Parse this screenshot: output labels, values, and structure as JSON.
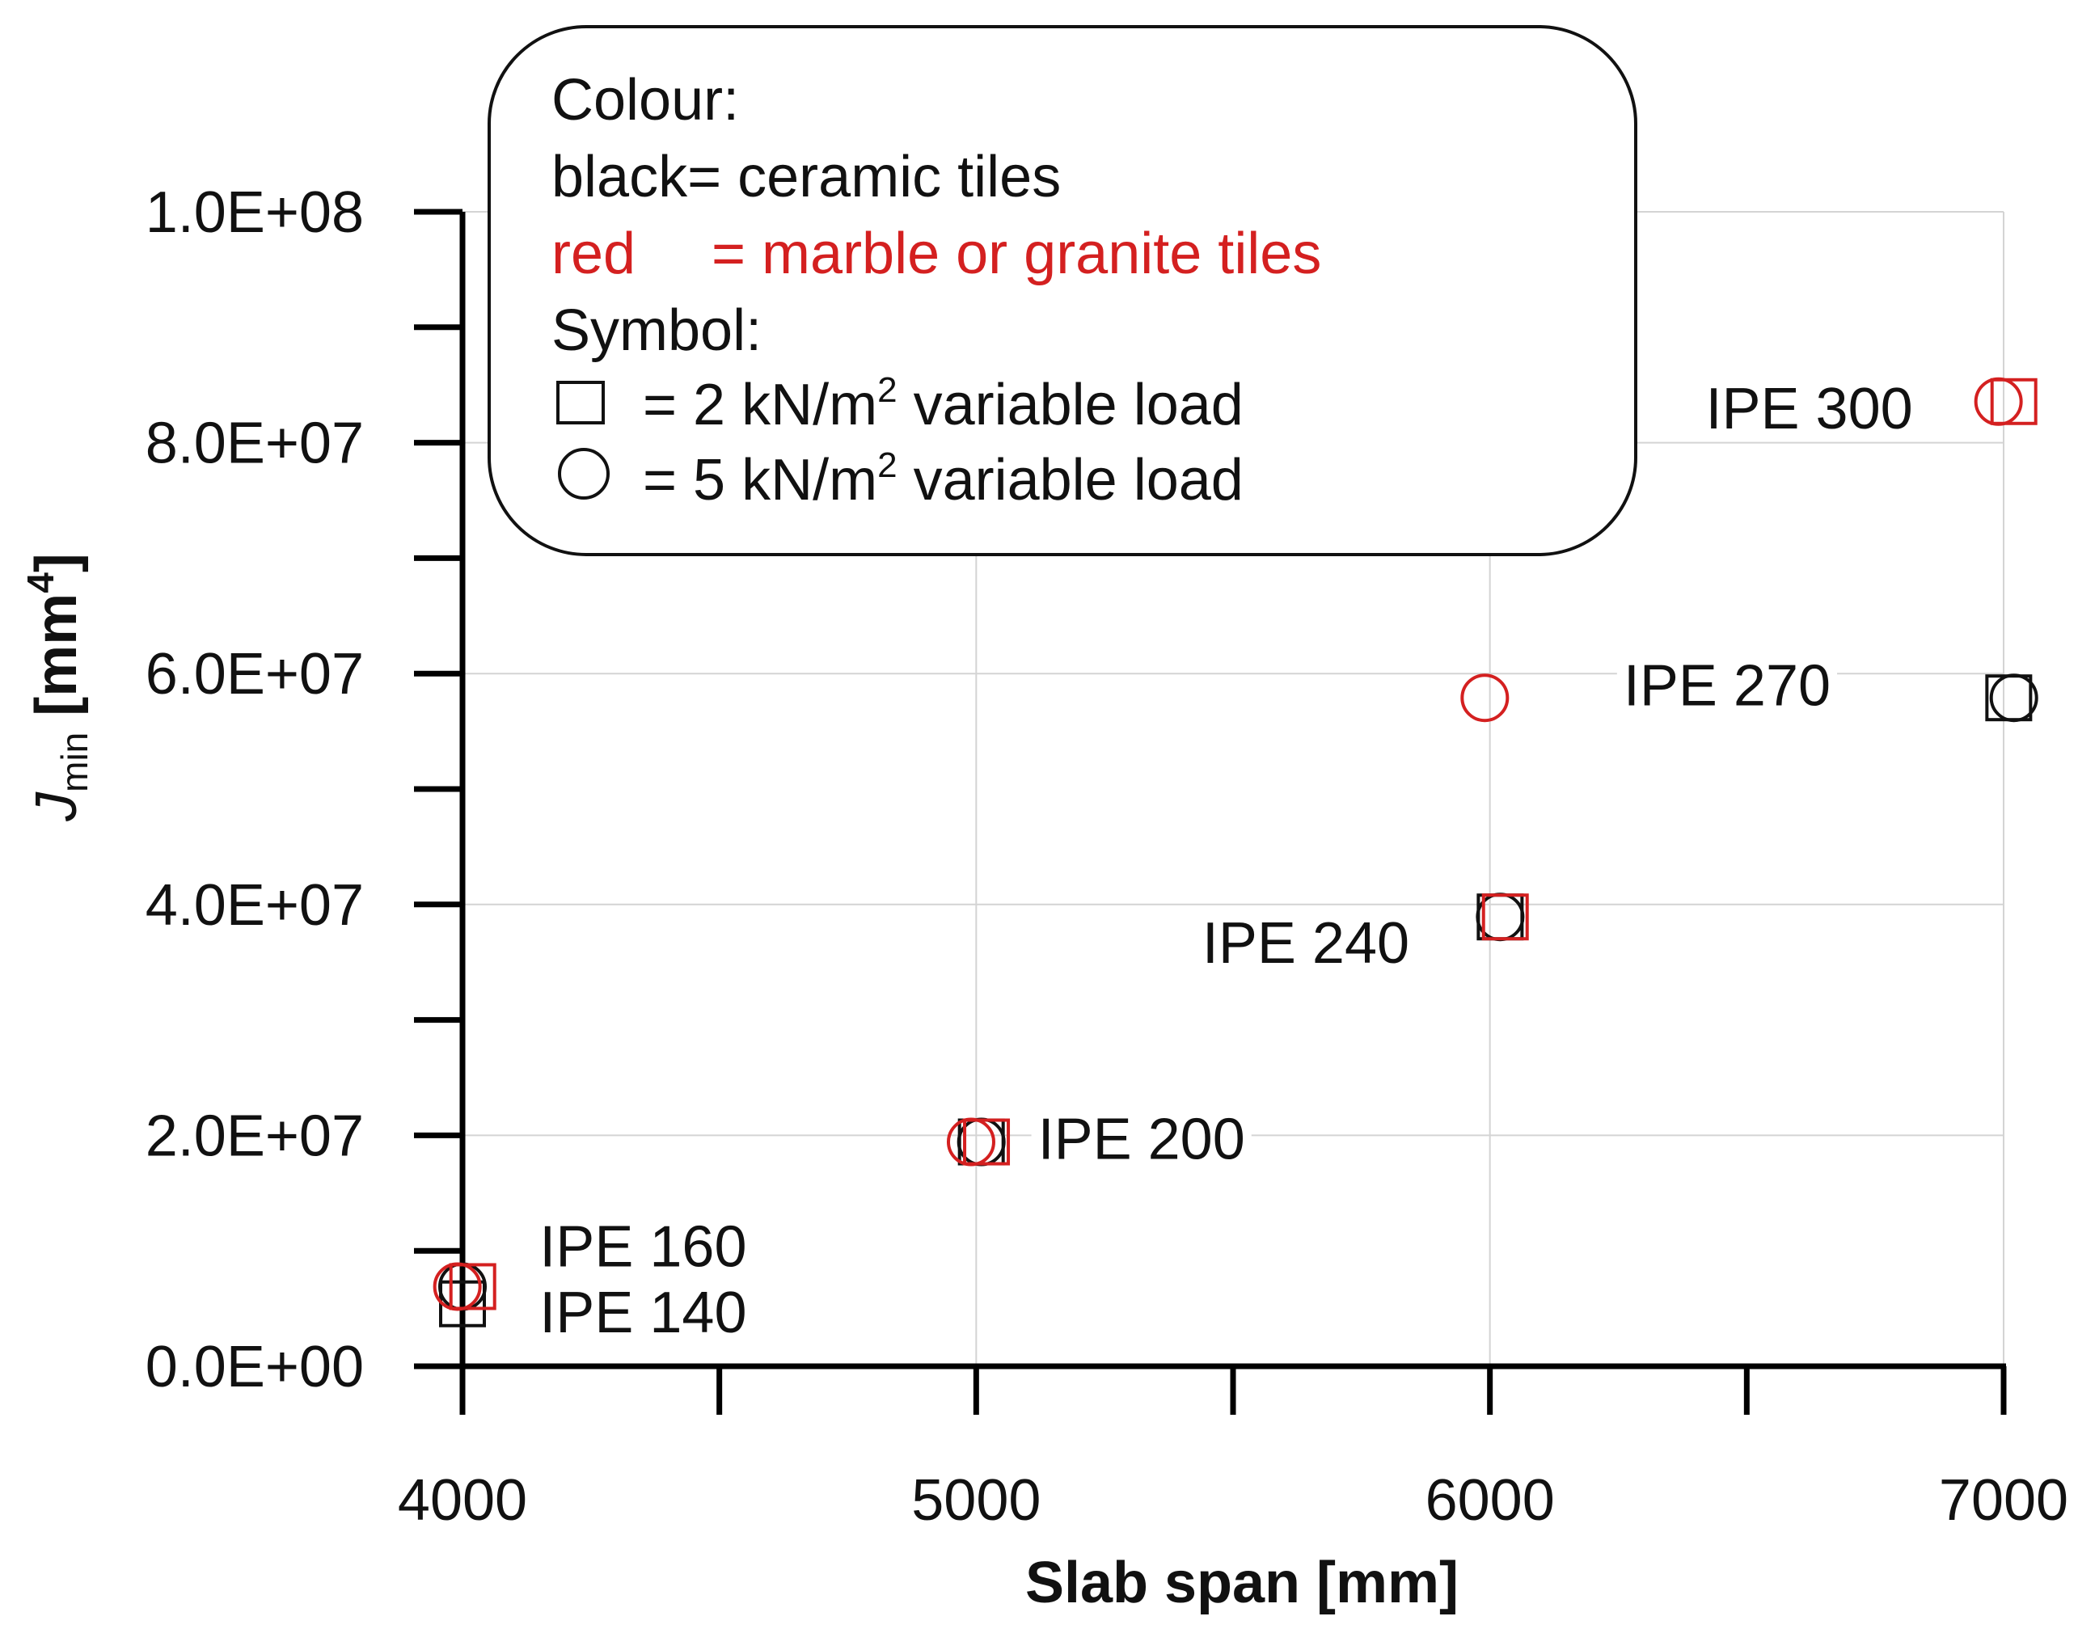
{
  "chart_data": {
    "type": "scatter",
    "xlabel": "Slab span [mm]",
    "ylabel": {
      "symbol": "J",
      "subscript": "min",
      "unit_prefix": " [mm",
      "unit_sup": "4",
      "unit_suffix": "]"
    },
    "xlim": [
      4000,
      7000
    ],
    "ylim": [
      0,
      100000000
    ],
    "xticks": [
      4000,
      4500,
      5000,
      5500,
      6000,
      6500,
      7000
    ],
    "xtick_labels": [
      "4000",
      "",
      "5000",
      "",
      "6000",
      "",
      "7000"
    ],
    "yticks": [
      0,
      10000000,
      20000000,
      30000000,
      40000000,
      50000000,
      60000000,
      70000000,
      80000000,
      90000000,
      100000000
    ],
    "ytick_labels": [
      "0.0E+00",
      "",
      "2.0E+07",
      "",
      "4.0E+07",
      "",
      "6.0E+07",
      "",
      "8.0E+07",
      "",
      "1.0E+08"
    ],
    "colors": {
      "black": "#111111",
      "red": "#d42020"
    },
    "series": [
      {
        "name": "ceramic tiles, 2 kN/m² variable load",
        "color": "black",
        "marker": "square",
        "points": [
          {
            "x": 4000,
            "y": 5410000
          },
          {
            "x": 5010,
            "y": 19430000
          },
          {
            "x": 6020,
            "y": 38920000
          },
          {
            "x": 7010,
            "y": 57900000
          }
        ]
      },
      {
        "name": "ceramic tiles, 5 kN/m² variable load",
        "color": "black",
        "marker": "circle",
        "points": [
          {
            "x": 4000,
            "y": 6900000
          },
          {
            "x": 5010,
            "y": 19430000
          },
          {
            "x": 6020,
            "y": 38920000
          },
          {
            "x": 7020,
            "y": 57900000
          }
        ]
      },
      {
        "name": "marble or granite tiles, 2 kN/m² variable load",
        "color": "red",
        "marker": "square",
        "points": [
          {
            "x": 4020,
            "y": 6900000
          },
          {
            "x": 5020,
            "y": 19430000
          },
          {
            "x": 6030,
            "y": 38920000
          },
          {
            "x": 7020,
            "y": 83560000
          }
        ]
      },
      {
        "name": "marble or granite tiles, 5 kN/m² variable load",
        "color": "red",
        "marker": "circle",
        "points": [
          {
            "x": 3990,
            "y": 6900000
          },
          {
            "x": 4990,
            "y": 19430000
          },
          {
            "x": 5990,
            "y": 57900000
          },
          {
            "x": 6990,
            "y": 83560000
          }
        ]
      }
    ],
    "annotations": [
      {
        "text": "IPE 140",
        "x": 4150,
        "y": 4700000
      },
      {
        "text": "IPE 160",
        "x": 4150,
        "y": 10400000
      },
      {
        "text": "IPE 200",
        "x": 5120,
        "y": 19700000
      },
      {
        "text": "IPE 240",
        "x": 5440,
        "y": 36700000
      },
      {
        "text": "IPE 270",
        "x": 6260,
        "y": 59000000
      },
      {
        "text": "IPE 300",
        "x": 6420,
        "y": 83000000
      }
    ],
    "legend": {
      "placement": "top-left",
      "colour_heading": "Colour:",
      "black_entry": "black= ceramic tiles",
      "red_entry_prefix": "red",
      "red_entry_suffix": "= marble or granite tiles",
      "symbol_heading": "Symbol:",
      "square_entry_prefix": "= 2 kN/m",
      "circle_entry_prefix": "= 5 kN/m",
      "entry_sup": "2",
      "entry_suffix": " variable load"
    }
  }
}
